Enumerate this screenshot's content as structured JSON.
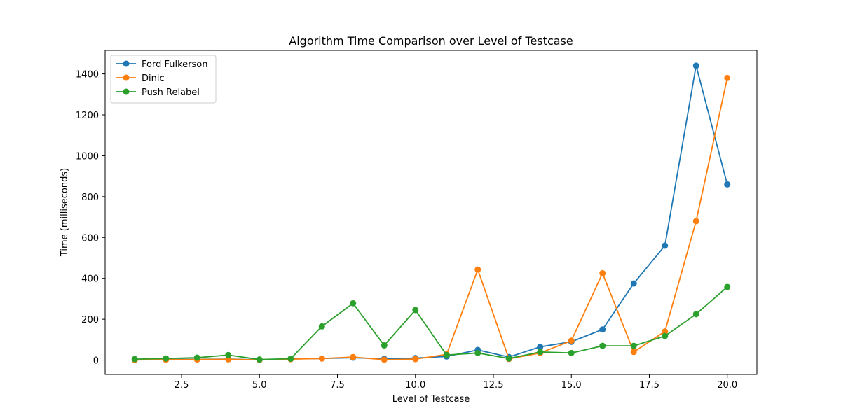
{
  "chart_data": {
    "type": "line",
    "title": "Algorithm Time Comparison over Level of Testcase",
    "xlabel": "Level of Testcase",
    "ylabel": "Time (milliseconds)",
    "xlim": [
      0.05,
      20.95
    ],
    "ylim": [
      -70,
      1515
    ],
    "xticks": [
      2.5,
      5.0,
      7.5,
      10.0,
      12.5,
      15.0,
      17.5,
      20.0
    ],
    "xtick_labels": [
      "2.5",
      "5.0",
      "7.5",
      "10.0",
      "12.5",
      "15.0",
      "17.5",
      "20.0"
    ],
    "yticks": [
      0,
      200,
      400,
      600,
      800,
      1000,
      1200,
      1400
    ],
    "ytick_labels": [
      "0",
      "200",
      "400",
      "600",
      "800",
      "1000",
      "1200",
      "1400"
    ],
    "grid": false,
    "legend_position": "top-left",
    "x": [
      1,
      2,
      3,
      4,
      5,
      6,
      7,
      8,
      9,
      10,
      11,
      12,
      13,
      14,
      15,
      16,
      17,
      18,
      19,
      20
    ],
    "series": [
      {
        "name": "Ford Fulkerson",
        "color": "#1f77b4",
        "values": [
          2,
          3,
          4,
          5,
          2,
          6,
          8,
          12,
          6,
          10,
          18,
          50,
          15,
          65,
          90,
          150,
          375,
          560,
          1440,
          860
        ]
      },
      {
        "name": "Dinic",
        "color": "#ff7f0e",
        "values": [
          1,
          2,
          3,
          4,
          1,
          5,
          8,
          15,
          2,
          5,
          28,
          443,
          6,
          35,
          95,
          425,
          40,
          140,
          680,
          1380
        ]
      },
      {
        "name": "Push Relabel",
        "color": "#2ca02c",
        "values": [
          5,
          8,
          12,
          25,
          3,
          7,
          165,
          278,
          72,
          245,
          25,
          35,
          8,
          40,
          35,
          70,
          70,
          118,
          225,
          358
        ]
      }
    ]
  }
}
